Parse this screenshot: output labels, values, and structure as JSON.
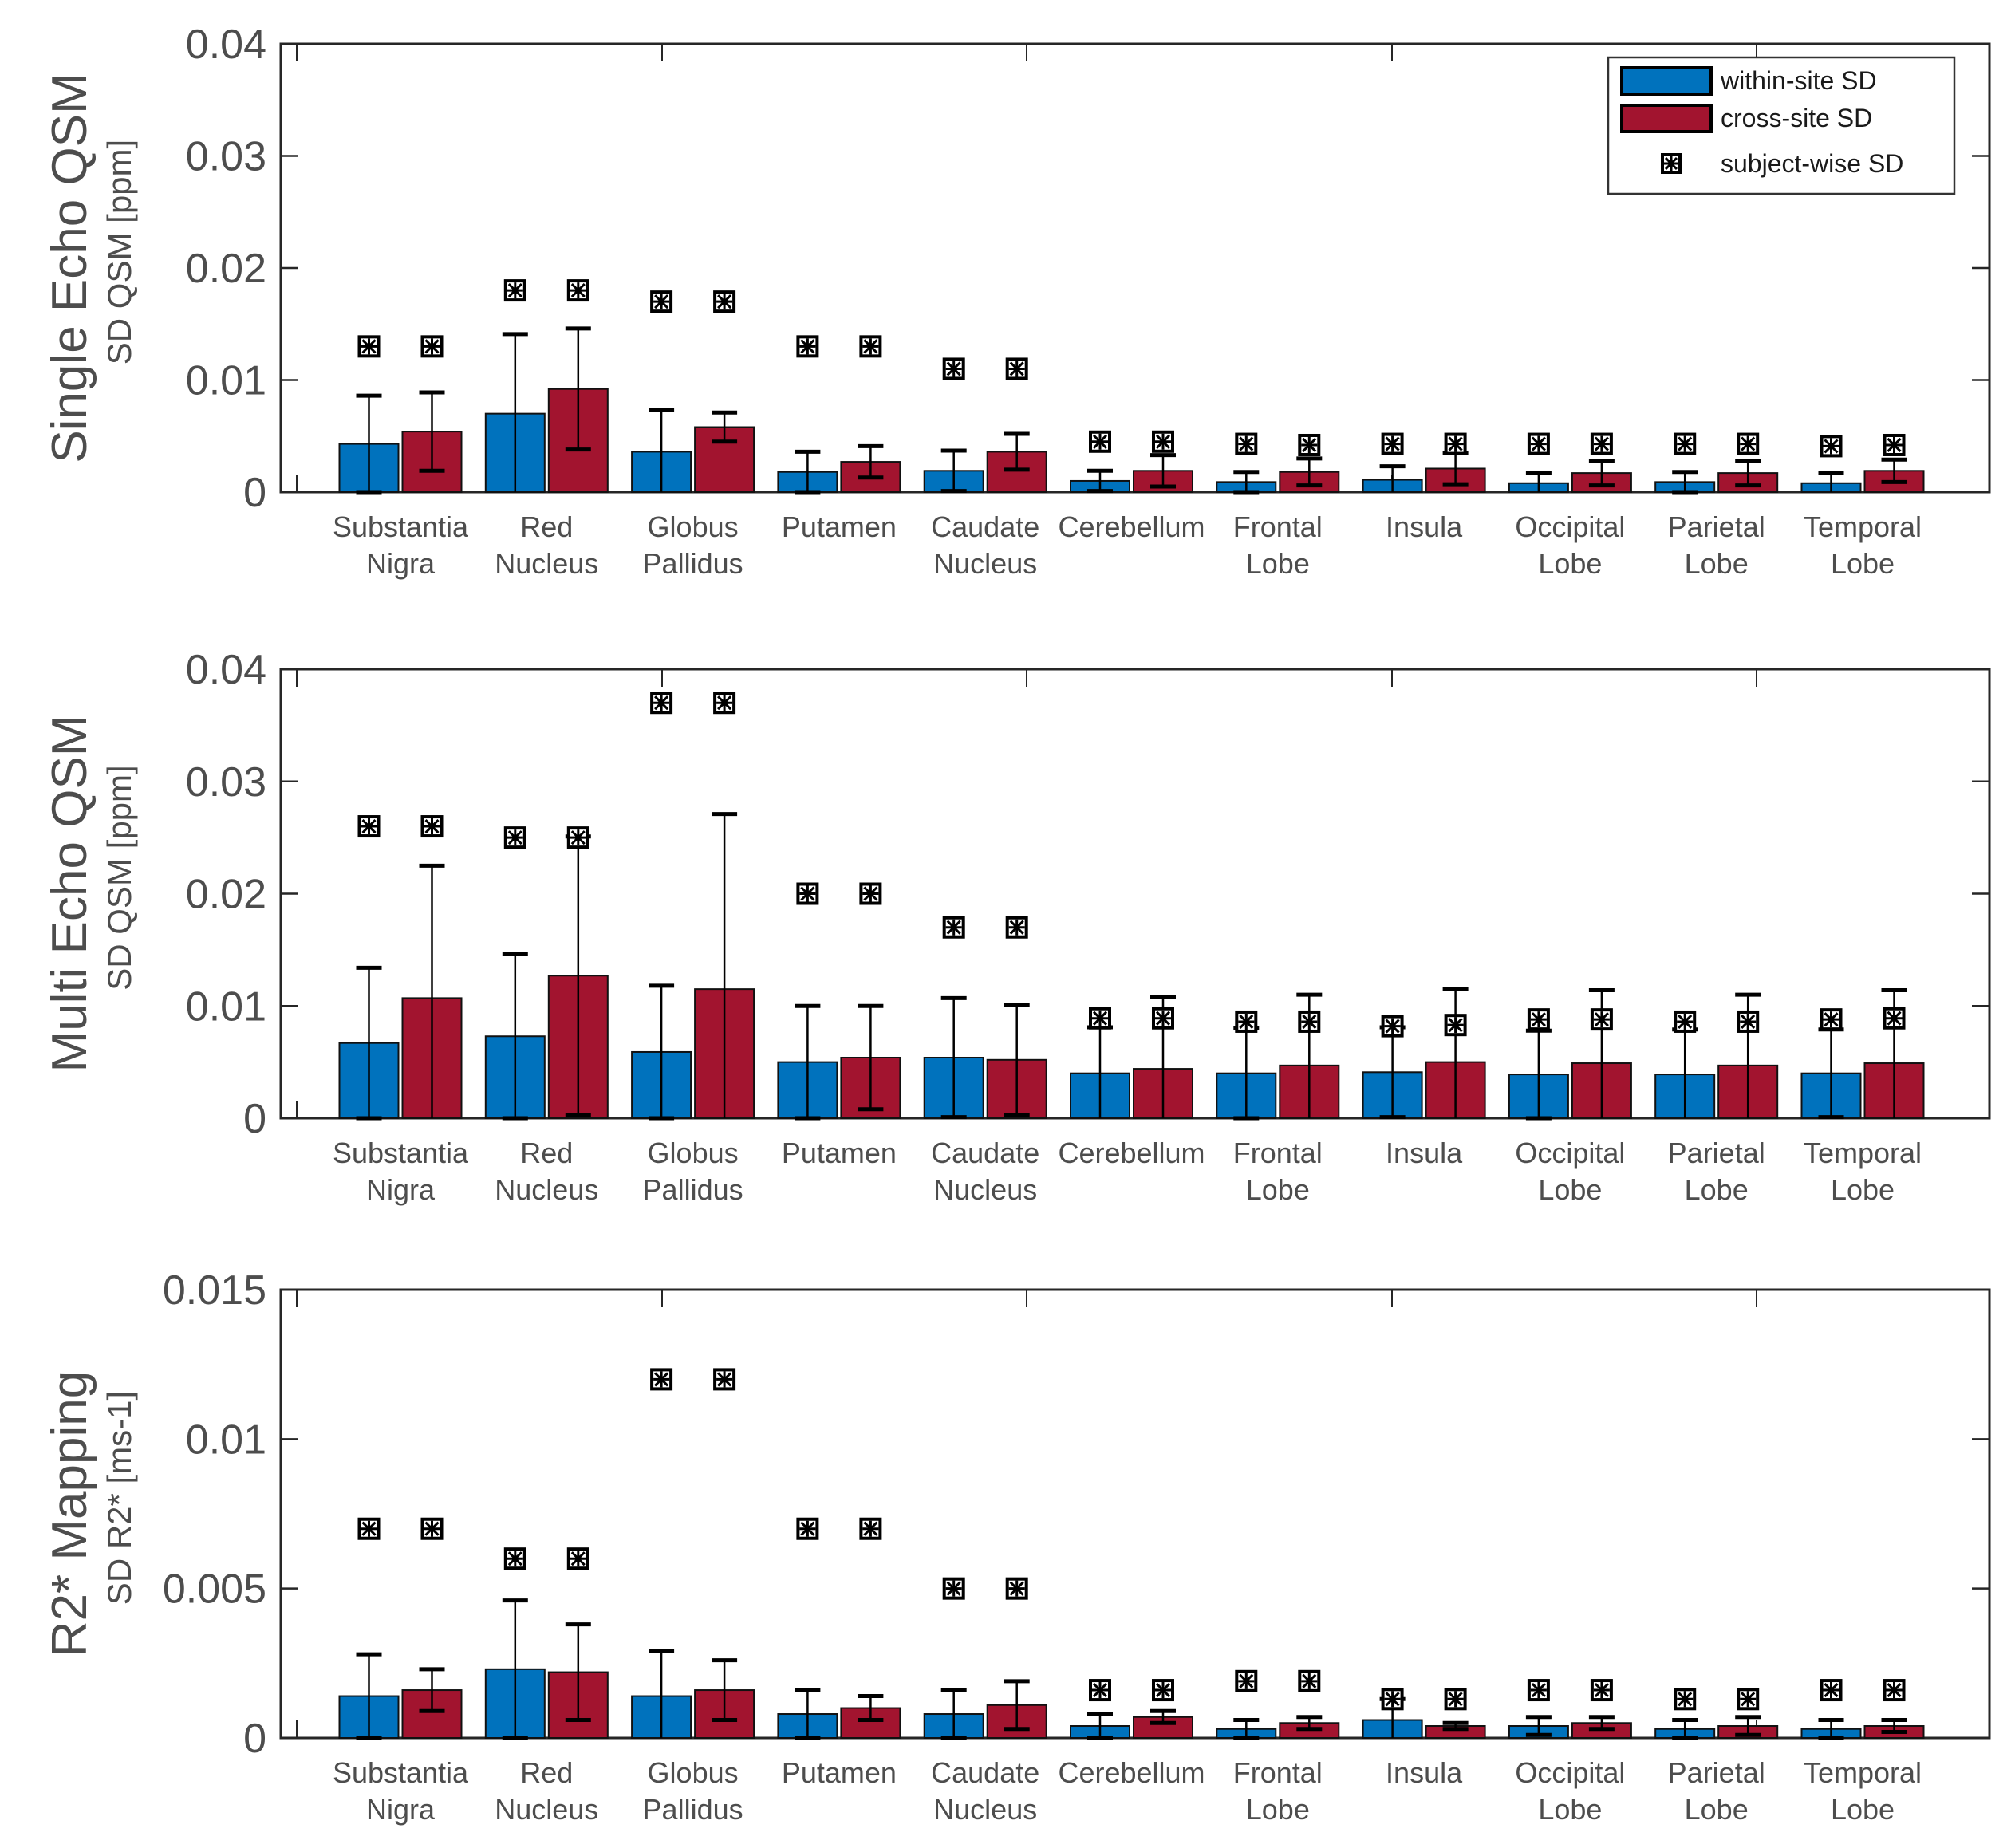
{
  "colors": {
    "within": "#0072bd",
    "cross": "#a2142f",
    "axis": "#262626",
    "text": "#4d4d4d"
  },
  "legend": {
    "placement": "top-right",
    "items": [
      {
        "label": "within-site SD",
        "kind": "bar",
        "series": "within"
      },
      {
        "label": "cross-site SD",
        "kind": "bar",
        "series": "cross"
      },
      {
        "label": "subject-wise SD",
        "kind": "marker",
        "series": "subject"
      }
    ]
  },
  "chart_data": [
    {
      "type": "bar",
      "title": "Single Echo QSM",
      "ylabel": "SD QSM [ppm]",
      "ylim": [
        0,
        0.04
      ],
      "yticks": [
        "0",
        "0.01",
        "0.02",
        "0.03",
        "0.04"
      ],
      "ytick_values": [
        0,
        0.01,
        0.02,
        0.03,
        0.04
      ],
      "categories": [
        [
          "Substantia",
          "Nigra"
        ],
        [
          "Red",
          "Nucleus"
        ],
        [
          "Globus",
          "Pallidus"
        ],
        [
          "Putamen"
        ],
        [
          "Caudate",
          "Nucleus"
        ],
        [
          "Cerebellum"
        ],
        [
          "Frontal",
          "Lobe"
        ],
        [
          "Insula"
        ],
        [
          "Occipital",
          "Lobe"
        ],
        [
          "Parietal",
          "Lobe"
        ],
        [
          "Temporal",
          "Lobe"
        ]
      ],
      "series": [
        {
          "name": "within-site SD",
          "values": [
            0.0043,
            0.007,
            0.0036,
            0.0018,
            0.0019,
            0.001,
            0.0009,
            0.0011,
            0.0008,
            0.0009,
            0.0008
          ],
          "errors": [
            0.0043,
            0.0071,
            0.0037,
            0.0018,
            0.0018,
            0.0009,
            0.0009,
            0.0012,
            0.0009,
            0.0009,
            0.0009
          ]
        },
        {
          "name": "cross-site SD",
          "values": [
            0.0054,
            0.0092,
            0.0058,
            0.0027,
            0.0036,
            0.0019,
            0.0018,
            0.0021,
            0.0017,
            0.0017,
            0.0019
          ],
          "errors": [
            0.0035,
            0.0054,
            0.0013,
            0.0014,
            0.0016,
            0.0014,
            0.0012,
            0.0014,
            0.0011,
            0.0011,
            0.001
          ]
        }
      ],
      "subject_wise": [
        [
          0.013,
          0.013
        ],
        [
          0.018,
          0.018
        ],
        [
          0.017,
          0.017
        ],
        [
          0.013,
          0.013
        ],
        [
          0.011,
          0.011
        ],
        [
          0.0045,
          0.0045
        ],
        [
          0.0043,
          0.0042
        ],
        [
          0.0043,
          0.0043
        ],
        [
          0.0043,
          0.0043
        ],
        [
          0.0043,
          0.0043
        ],
        [
          0.0041,
          0.0042
        ]
      ],
      "show_legend": true
    },
    {
      "type": "bar",
      "title": "Multi Echo QSM",
      "ylabel": "SD QSM [ppm]",
      "ylim": [
        0,
        0.04
      ],
      "yticks": [
        "0",
        "0.01",
        "0.02",
        "0.03",
        "0.04"
      ],
      "ytick_values": [
        0,
        0.01,
        0.02,
        0.03,
        0.04
      ],
      "categories": [
        [
          "Substantia",
          "Nigra"
        ],
        [
          "Red",
          "Nucleus"
        ],
        [
          "Globus",
          "Pallidus"
        ],
        [
          "Putamen"
        ],
        [
          "Caudate",
          "Nucleus"
        ],
        [
          "Cerebellum"
        ],
        [
          "Frontal",
          "Lobe"
        ],
        [
          "Insula"
        ],
        [
          "Occipital",
          "Lobe"
        ],
        [
          "Parietal",
          "Lobe"
        ],
        [
          "Temporal",
          "Lobe"
        ]
      ],
      "series": [
        {
          "name": "within-site SD",
          "values": [
            0.0067,
            0.0073,
            0.0059,
            0.005,
            0.0054,
            0.004,
            0.004,
            0.0041,
            0.0039,
            0.0039,
            0.004
          ],
          "errors": [
            0.0067,
            0.0073,
            0.0059,
            0.005,
            0.0053,
            0.0041,
            0.004,
            0.004,
            0.0039,
            0.004,
            0.0039
          ]
        },
        {
          "name": "cross-site SD",
          "values": [
            0.0107,
            0.0127,
            0.0115,
            0.0054,
            0.0052,
            0.0044,
            0.0047,
            0.005,
            0.0049,
            0.0047,
            0.0049
          ],
          "errors": [
            0.0118,
            0.0124,
            0.0156,
            0.0046,
            0.0049,
            0.0064,
            0.0063,
            0.0065,
            0.0065,
            0.0063,
            0.0065
          ]
        }
      ],
      "subject_wise": [
        [
          0.026,
          0.026
        ],
        [
          0.025,
          0.025
        ],
        [
          0.037,
          0.037
        ],
        [
          0.02,
          0.02
        ],
        [
          0.017,
          0.017
        ],
        [
          0.0089,
          0.0089
        ],
        [
          0.0086,
          0.0086
        ],
        [
          0.0082,
          0.0083
        ],
        [
          0.0088,
          0.0088
        ],
        [
          0.0086,
          0.0086
        ],
        [
          0.0088,
          0.0089
        ]
      ],
      "show_legend": false
    },
    {
      "type": "bar",
      "title": "R2* Mapping",
      "ylabel": "SD R2* [ms-1]",
      "ylim": [
        0,
        0.015
      ],
      "yticks": [
        "0",
        "0.005",
        "0.01",
        "0.015"
      ],
      "ytick_values": [
        0,
        0.005,
        0.01,
        0.015
      ],
      "categories": [
        [
          "Substantia",
          "Nigra"
        ],
        [
          "Red",
          "Nucleus"
        ],
        [
          "Globus",
          "Pallidus"
        ],
        [
          "Putamen"
        ],
        [
          "Caudate",
          "Nucleus"
        ],
        [
          "Cerebellum"
        ],
        [
          "Frontal",
          "Lobe"
        ],
        [
          "Insula"
        ],
        [
          "Occipital",
          "Lobe"
        ],
        [
          "Parietal",
          "Lobe"
        ],
        [
          "Temporal",
          "Lobe"
        ]
      ],
      "series": [
        {
          "name": "within-site SD",
          "values": [
            0.0014,
            0.0023,
            0.0014,
            0.0008,
            0.0008,
            0.0004,
            0.0003,
            0.0006,
            0.0004,
            0.0003,
            0.0003
          ],
          "errors": [
            0.0014,
            0.0023,
            0.0015,
            0.0008,
            0.0008,
            0.0004,
            0.0003,
            0.0007,
            0.0003,
            0.0003,
            0.0003
          ]
        },
        {
          "name": "cross-site SD",
          "values": [
            0.0016,
            0.0022,
            0.0016,
            0.001,
            0.0011,
            0.0007,
            0.0005,
            0.0004,
            0.0005,
            0.0004,
            0.0004
          ],
          "errors": [
            0.0007,
            0.0016,
            0.001,
            0.0004,
            0.0008,
            0.0002,
            0.0002,
            0.0001,
            0.0002,
            0.0003,
            0.0002
          ]
        }
      ],
      "subject_wise": [
        [
          0.007,
          0.007
        ],
        [
          0.006,
          0.006
        ],
        [
          0.012,
          0.012
        ],
        [
          0.007,
          0.007
        ],
        [
          0.005,
          0.005
        ],
        [
          0.0016,
          0.0016
        ],
        [
          0.0019,
          0.0019
        ],
        [
          0.0013,
          0.0013
        ],
        [
          0.0016,
          0.0016
        ],
        [
          0.0013,
          0.0013
        ],
        [
          0.0016,
          0.0016
        ]
      ],
      "show_legend": false
    }
  ]
}
